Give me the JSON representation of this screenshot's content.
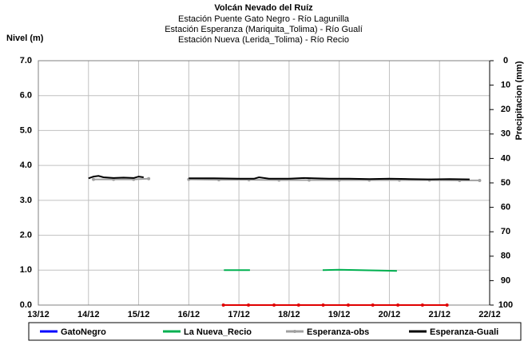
{
  "chart_data": {
    "type": "line",
    "title": "Volcán Nevado del Ruíz",
    "subtitles": [
      "Estación Puente Gato Negro - Río Lagunilla",
      "Estación Esperanza (Mariquita_Tolima) - Río Gualí",
      "Estación Nueva (Lerida_Tolima) - Río Recio"
    ],
    "ylabel": "Nivel (m)",
    "y2label": "Precipitacion (mm)",
    "xlim": [
      13,
      22
    ],
    "xticks": [
      {
        "value": 13,
        "label": "13/12"
      },
      {
        "value": 14,
        "label": "14/12"
      },
      {
        "value": 15,
        "label": "15/12"
      },
      {
        "value": 16,
        "label": "16/12"
      },
      {
        "value": 17,
        "label": "17/12"
      },
      {
        "value": 18,
        "label": "18/12"
      },
      {
        "value": 19,
        "label": "19/12"
      },
      {
        "value": 20,
        "label": "20/12"
      },
      {
        "value": 21,
        "label": "21/12"
      },
      {
        "value": 22,
        "label": "22/12"
      }
    ],
    "ylim": [
      0,
      7
    ],
    "yticks": [
      {
        "value": 0,
        "label": "0.0"
      },
      {
        "value": 1,
        "label": "1.0"
      },
      {
        "value": 2,
        "label": "2.0"
      },
      {
        "value": 3,
        "label": "3.0"
      },
      {
        "value": 4,
        "label": "4.0"
      },
      {
        "value": 5,
        "label": "5.0"
      },
      {
        "value": 6,
        "label": "6.0"
      },
      {
        "value": 7,
        "label": "7.0"
      }
    ],
    "y2lim": [
      0,
      100
    ],
    "y2_inverted": true,
    "y2ticks": [
      0,
      10,
      20,
      30,
      40,
      50,
      60,
      70,
      80,
      90,
      100
    ],
    "grid": true,
    "legend": "bottom",
    "series": [
      {
        "name": "GatoNegro",
        "color": "#0000ff",
        "x": [],
        "values": []
      },
      {
        "name": "La Nueva_Recio",
        "color": "#00b050",
        "x": [
          16.7,
          17.22,
          17.5,
          18.67,
          19.0,
          19.4,
          19.8,
          20.15
        ],
        "values": [
          1.0,
          1.0,
          null,
          1.0,
          1.01,
          1.0,
          0.99,
          0.98
        ]
      },
      {
        "name": "Esperanza-obs",
        "color": "#a0a0a0",
        "marker": true,
        "x": [
          14.1,
          14.5,
          14.9,
          15.2,
          15.6,
          16.0,
          16.6,
          17.2,
          17.8,
          18.4,
          19.0,
          19.6,
          20.2,
          20.8,
          21.4,
          21.8
        ],
        "values": [
          3.6,
          3.6,
          3.6,
          3.62,
          null,
          3.6,
          3.59,
          3.59,
          3.58,
          3.58,
          3.58,
          3.58,
          3.58,
          3.58,
          3.57,
          3.57
        ]
      },
      {
        "name": "Esperanza-Guali",
        "color": "#000000",
        "x": [
          14.0,
          14.1,
          14.2,
          14.3,
          14.5,
          14.7,
          14.9,
          15.0,
          15.1,
          15.5,
          16.0,
          16.5,
          17.0,
          17.3,
          17.4,
          17.6,
          18.0,
          18.3,
          18.5,
          18.8,
          19.2,
          19.6,
          20.0,
          20.4,
          20.8,
          21.2,
          21.6
        ],
        "values": [
          3.63,
          3.68,
          3.7,
          3.66,
          3.64,
          3.65,
          3.64,
          3.68,
          3.66,
          null,
          3.63,
          3.63,
          3.62,
          3.62,
          3.66,
          3.62,
          3.62,
          3.64,
          3.63,
          3.62,
          3.62,
          3.61,
          3.62,
          3.61,
          3.6,
          3.61,
          3.6
        ]
      },
      {
        "color": "#e00000",
        "marker": true,
        "x": [
          16.69,
          17.19,
          17.7,
          18.19,
          18.68,
          19.18,
          19.67,
          20.17,
          20.66,
          21.15
        ],
        "values": [
          0,
          0,
          0,
          0,
          0,
          0,
          0,
          0,
          0,
          0
        ]
      }
    ]
  }
}
